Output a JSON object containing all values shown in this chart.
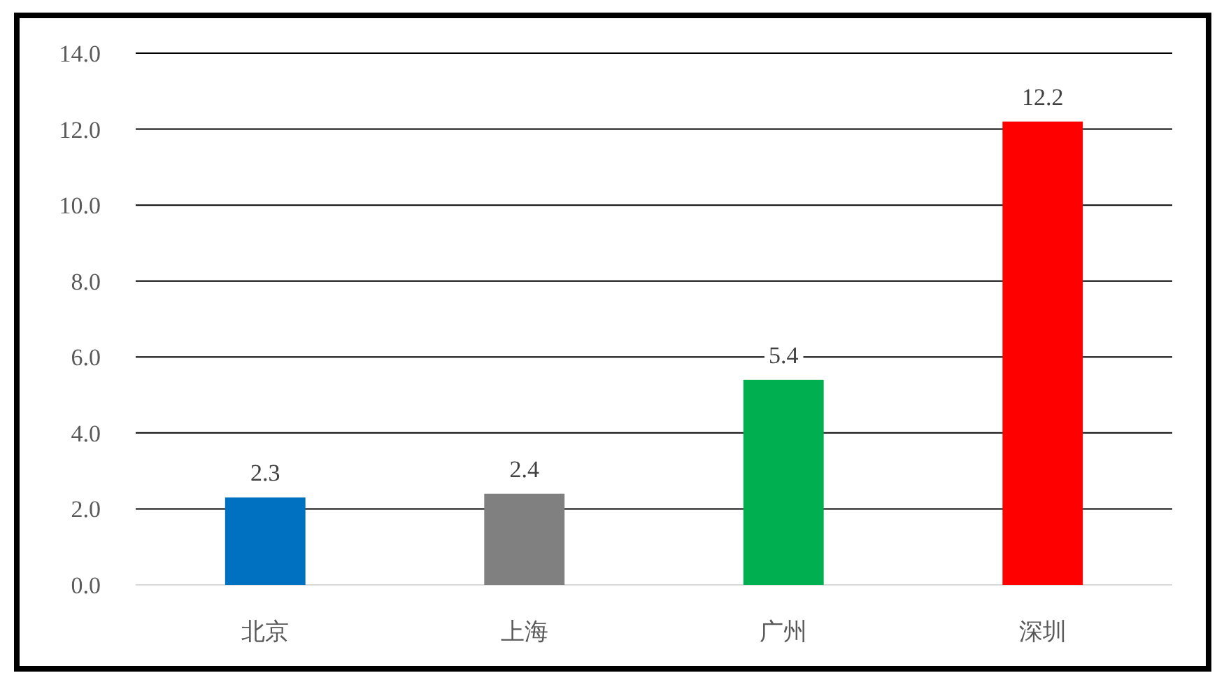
{
  "chart_data": {
    "type": "bar",
    "categories": [
      "北京",
      "上海",
      "广州",
      "深圳"
    ],
    "values": [
      2.3,
      2.4,
      5.4,
      12.2
    ],
    "colors": [
      "#0070c0",
      "#808080",
      "#00b050",
      "#ff0000"
    ],
    "ylim": [
      0,
      14
    ],
    "yticks": [
      {
        "value": 0,
        "label": "0.0"
      },
      {
        "value": 2,
        "label": "2.0"
      },
      {
        "value": 4,
        "label": "4.0"
      },
      {
        "value": 6,
        "label": "6.0"
      },
      {
        "value": 8,
        "label": "8.0"
      },
      {
        "value": 10,
        "label": "10.0"
      },
      {
        "value": 12,
        "label": "12.0"
      },
      {
        "value": 14,
        "label": "14.0"
      }
    ],
    "grid": "y",
    "data_labels": true
  }
}
